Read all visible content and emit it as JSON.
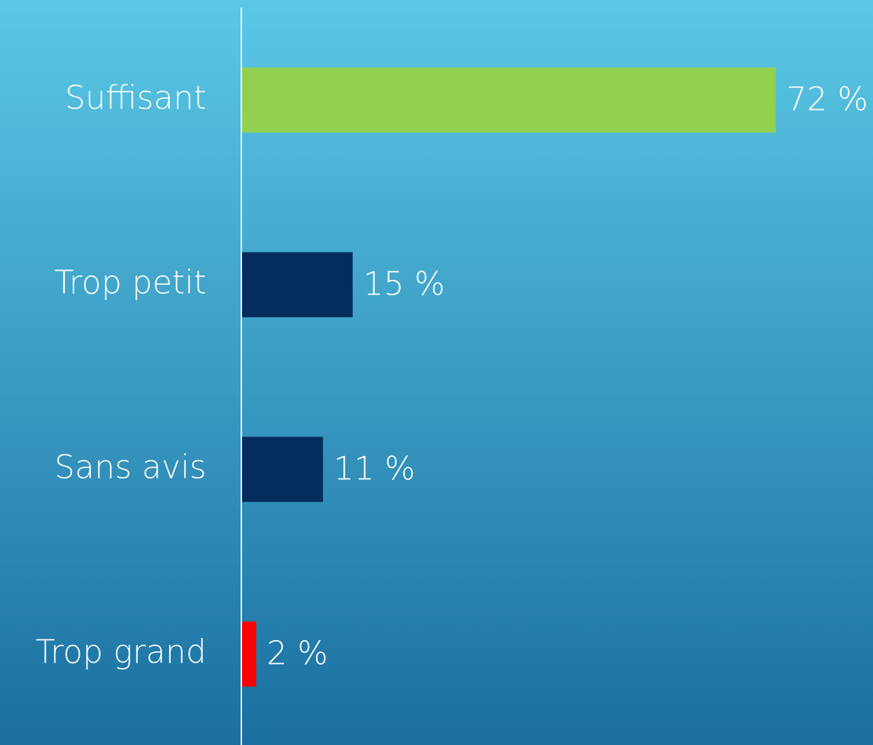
{
  "chart_data": {
    "type": "hbar",
    "categories": [
      "Suffisant",
      "Trop petit",
      "Sans avis",
      "Trop grand"
    ],
    "values": [
      72,
      15,
      11,
      2
    ],
    "value_labels": [
      "72 %",
      "15 %",
      "11 %",
      "2 %"
    ],
    "colors": [
      "#92d050",
      "#042c5c",
      "#042c5c",
      "#ff0000"
    ],
    "xlim": [
      0,
      85
    ]
  }
}
